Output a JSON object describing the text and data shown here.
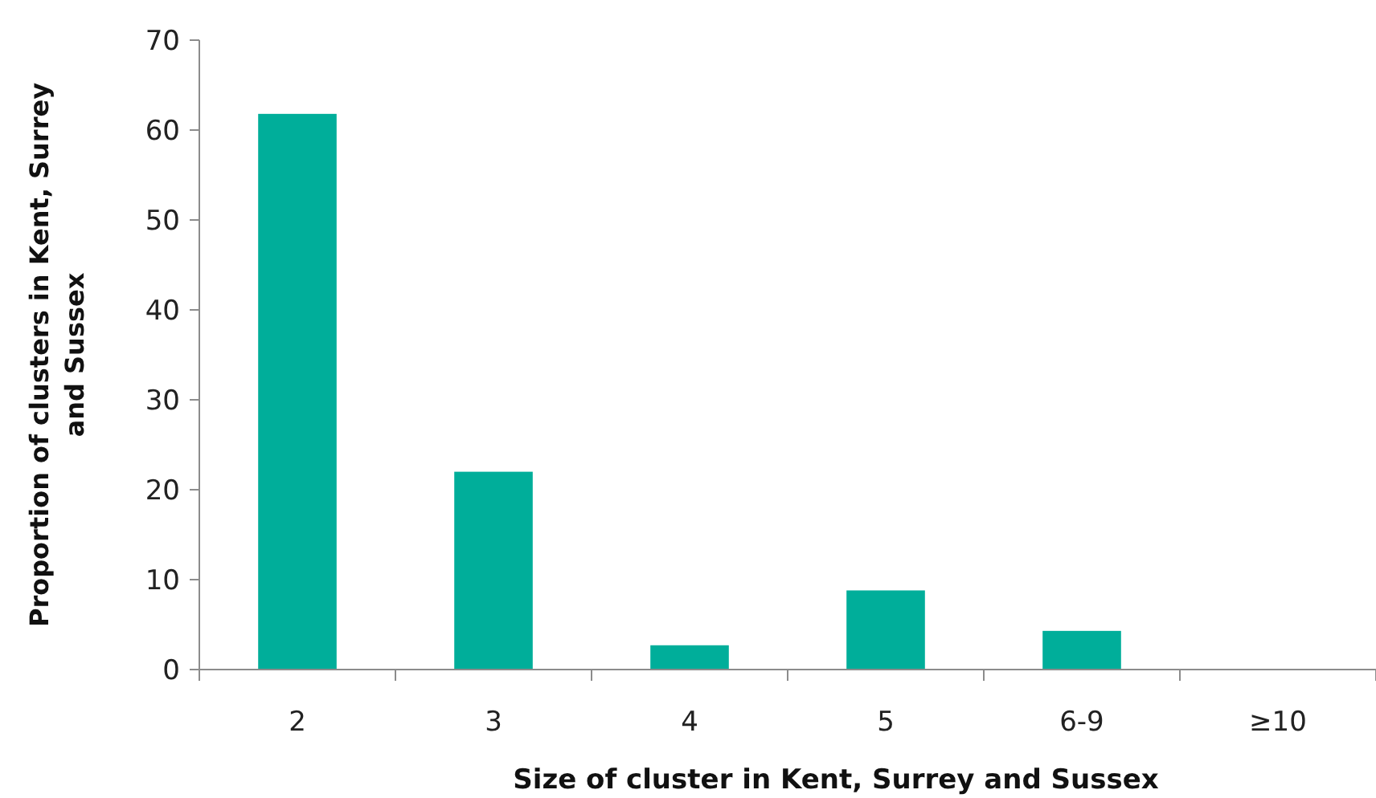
{
  "chart_data": {
    "type": "bar",
    "xlabel": "Size of cluster in Kent, Surrey and Sussex",
    "ylabel": "Proportion of clusters in Kent, Surrey and Sussex",
    "categories": [
      "2",
      "3",
      "4",
      "5",
      "6-9",
      "≥10"
    ],
    "values": [
      61.8,
      22.0,
      2.7,
      8.8,
      4.3,
      0
    ],
    "color": "#00ae9a",
    "ylim": [
      0,
      70
    ],
    "yticks": [
      0,
      10,
      20,
      30,
      40,
      50,
      60,
      70
    ],
    "grid": false
  }
}
